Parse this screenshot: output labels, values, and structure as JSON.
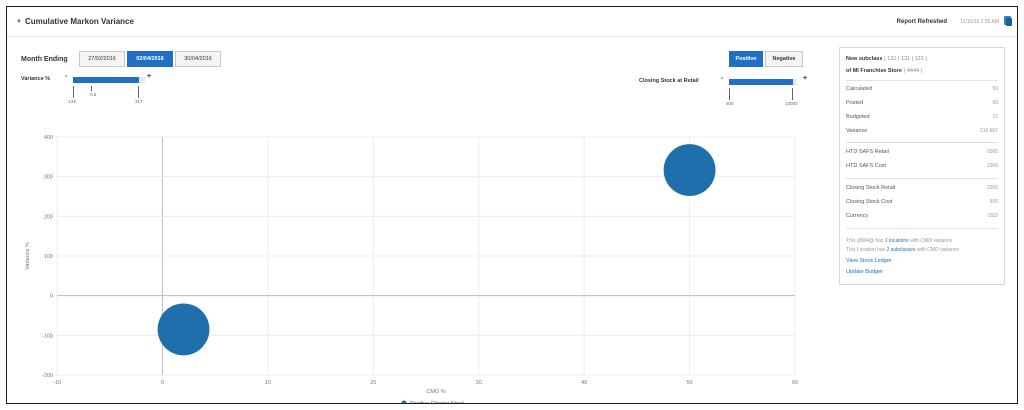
{
  "header": {
    "title": "Cumulative Markon Variance",
    "refresh_label": "Report Refreshed",
    "refresh_time": "11/10/16 2:55 AM"
  },
  "controls": {
    "month_label": "Month Ending",
    "dates": [
      "27/02/2016",
      "02/04/2016",
      "30/04/2016"
    ],
    "selected_date_index": 1,
    "segments": [
      "Positive",
      "Negative"
    ],
    "selected_segment_index": 0,
    "variance_slider": {
      "label": "Variance %",
      "minus": "-",
      "plus": "+",
      "min_label": "-125",
      "mid_label": "0.5",
      "max_label": "317"
    },
    "closing_slider": {
      "label": "Closing Stock at Retail",
      "minus": "-",
      "plus": "+",
      "min_label": "500",
      "max_label": "10000"
    }
  },
  "panel": {
    "subclass_title": "New subclass",
    "subclass_code": "( 131 | 131 | 131 )",
    "store_title": "of MI Franchise Store",
    "store_code": "( 4444 )",
    "stats": [
      {
        "label": "Calculated",
        "value": "50"
      },
      {
        "label": "Posted",
        "value": "60"
      },
      {
        "label": "Budgeted",
        "value": "12"
      },
      {
        "label": "Variance",
        "value": "316.667"
      }
    ],
    "safs": [
      {
        "label": "HTD SAFS Retail",
        "value": "2000"
      },
      {
        "label": "HTD SAFS Cost",
        "value": "1000"
      }
    ],
    "closing": [
      {
        "label": "Closing Stock Retail",
        "value": "2000"
      },
      {
        "label": "Closing Stock Cost",
        "value": "500"
      },
      {
        "label": "Currency",
        "value": "USD"
      }
    ],
    "note1_pre": "This @M4@ has",
    "note1_link": "1 locations",
    "note1_post": "with CMO variance",
    "note2_pre": "This Location has",
    "note2_link": "2 subclasses",
    "note2_post": "with CMO variance",
    "link_ledger": "View Stock Ledger",
    "link_budget": "Update Budget"
  },
  "chart_data": {
    "type": "scatter",
    "xlabel": "CMO %",
    "ylabel": "Variance %",
    "xlim": [
      -10,
      60
    ],
    "ylim": [
      -200,
      400
    ],
    "x_ticks": [
      -10,
      0,
      10,
      20,
      30,
      40,
      50,
      60
    ],
    "y_ticks": [
      -200,
      -100,
      0,
      100,
      200,
      300,
      400
    ],
    "grid": true,
    "legend_position": "bottom",
    "series": [
      {
        "name": "Positive Closing Stock",
        "color": "#1f6fad",
        "points": [
          {
            "x": 2,
            "y": -85,
            "size": 2000
          },
          {
            "x": 50,
            "y": 316.667,
            "size": 2000
          }
        ]
      }
    ]
  },
  "colors": {
    "accent": "#1f6fc5",
    "bubble": "#1f6fad"
  }
}
